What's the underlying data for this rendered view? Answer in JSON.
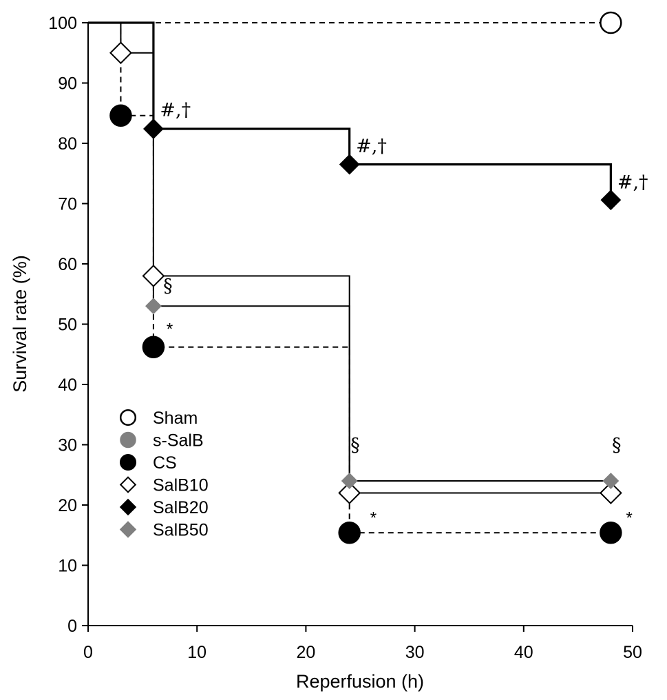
{
  "chart_data": {
    "type": "line",
    "subtype": "kaplan-meier step survival curve",
    "title": "",
    "xlabel": "Reperfusion (h)",
    "ylabel": "Survival rate (%)",
    "xlim": [
      0,
      50
    ],
    "ylim": [
      0,
      100
    ],
    "xticks": [
      0,
      10,
      20,
      30,
      40,
      50
    ],
    "yticks": [
      0,
      10,
      20,
      30,
      40,
      50,
      60,
      70,
      80,
      90,
      100
    ],
    "grid": false,
    "legend_position": "lower-left",
    "series": [
      {
        "name": "Sham",
        "marker": "circle",
        "fill": "#ffffff",
        "stroke": "#000000",
        "line": "dashed",
        "marker_scale": 1.0,
        "points": [
          [
            0,
            100
          ],
          [
            48,
            100
          ]
        ],
        "markers_at": [
          [
            48,
            100
          ]
        ]
      },
      {
        "name": "s-SalB",
        "marker": "circle",
        "fill": "#808080",
        "stroke": "#808080",
        "line": "none",
        "marker_scale": 0.6,
        "points": [],
        "markers_at": []
      },
      {
        "name": "CS",
        "marker": "circle",
        "fill": "#000000",
        "stroke": "#000000",
        "line": "dashed",
        "marker_scale": 1.0,
        "points": [
          [
            0,
            100
          ],
          [
            3,
            100
          ],
          [
            3,
            84.6
          ],
          [
            6,
            84.6
          ],
          [
            6,
            46.2
          ],
          [
            24,
            46.2
          ],
          [
            24,
            15.4
          ],
          [
            48,
            15.4
          ]
        ],
        "markers_at": [
          [
            3,
            84.6
          ],
          [
            6,
            46.2
          ],
          [
            24,
            15.4
          ],
          [
            48,
            15.4
          ]
        ]
      },
      {
        "name": "SalB10",
        "marker": "diamond",
        "fill": "#ffffff",
        "stroke": "#000000",
        "line": "solid",
        "marker_scale": 1.0,
        "points": [
          [
            0,
            100
          ],
          [
            3,
            100
          ],
          [
            3,
            95
          ],
          [
            6,
            95
          ],
          [
            6,
            58
          ],
          [
            24,
            58
          ],
          [
            24,
            22
          ],
          [
            48,
            22
          ]
        ],
        "markers_at": [
          [
            3,
            95
          ],
          [
            6,
            58
          ],
          [
            24,
            22
          ],
          [
            48,
            22
          ]
        ]
      },
      {
        "name": "SalB20",
        "marker": "diamond",
        "fill": "#000000",
        "stroke": "#000000",
        "line": "solid-bold",
        "marker_scale": 0.9,
        "points": [
          [
            0,
            100
          ],
          [
            6,
            100
          ],
          [
            6,
            82.4
          ],
          [
            24,
            82.4
          ],
          [
            24,
            76.5
          ],
          [
            48,
            76.5
          ],
          [
            48,
            70.6
          ]
        ],
        "markers_at": [
          [
            6,
            82.4
          ],
          [
            24,
            76.5
          ],
          [
            48,
            70.6
          ]
        ]
      },
      {
        "name": "SalB50",
        "marker": "diamond",
        "fill": "#808080",
        "stroke": "#808080",
        "line": "solid",
        "marker_scale": 0.7,
        "points": [
          [
            0,
            100
          ],
          [
            6,
            100
          ],
          [
            6,
            53
          ],
          [
            24,
            53
          ],
          [
            24,
            24
          ],
          [
            48,
            24
          ]
        ],
        "markers_at": [
          [
            6,
            53
          ],
          [
            24,
            24
          ],
          [
            48,
            24
          ]
        ]
      }
    ],
    "annotations": [
      {
        "text": "#,†",
        "x": 6.6,
        "y": 84.5,
        "kind": "symbol"
      },
      {
        "text": "#,†",
        "x": 24.6,
        "y": 78.5,
        "kind": "symbol"
      },
      {
        "text": "#,†",
        "x": 48.6,
        "y": 72.5,
        "kind": "symbol"
      },
      {
        "text": "§",
        "x": 6.9,
        "y": 55.3,
        "kind": "symbol"
      },
      {
        "text": "*",
        "x": 7.2,
        "y": 48.3,
        "kind": "star"
      },
      {
        "text": "§",
        "x": 24.1,
        "y": 28.9,
        "kind": "symbol"
      },
      {
        "text": "*",
        "x": 25.9,
        "y": 17.0,
        "kind": "star"
      },
      {
        "text": "§",
        "x": 48.1,
        "y": 28.9,
        "kind": "symbol"
      },
      {
        "text": "*",
        "x": 49.4,
        "y": 17.0,
        "kind": "star"
      }
    ]
  }
}
